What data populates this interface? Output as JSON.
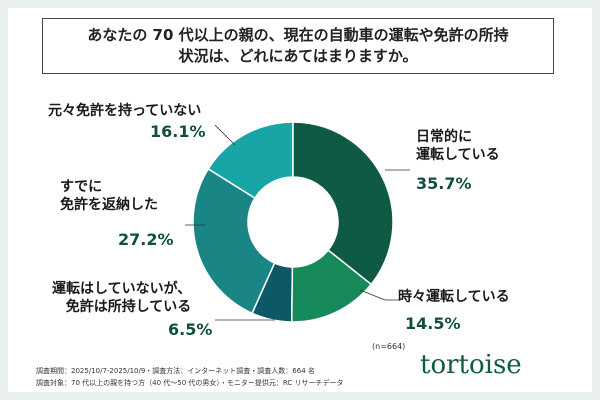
{
  "chart_data": {
    "type": "donut",
    "title": "あなたの 70 代以上の親の、現在の自動車の運転や免許の所持状況は、どれにあてはまりますか。",
    "categories": [
      "日常的に\n運転している",
      "時々運転している",
      "運転はしていないが、\n免許は所持している",
      "すでに\n免許を返納した",
      "元々免許を持っていない"
    ],
    "values": [
      35.7,
      14.5,
      6.5,
      27.2,
      16.1
    ],
    "value_labels": [
      "35.7%",
      "14.5%",
      "6.5%",
      "27.2%",
      "16.1%"
    ],
    "colors": [
      "#0f5a44",
      "#178a5b",
      "#0d5866",
      "#1a8585",
      "#18a5a5"
    ],
    "note": "(n=664)",
    "footnotes": [
      "調査期間：2025/10/7-2025/10/9・調査方法：インターネット調査・調査人数：664 名",
      "調査対象：70 代以上の親を持つ方（40 代～50 代の男女）・モニター提供元：RC リサーチデータ"
    ],
    "brand": "tortoise"
  }
}
